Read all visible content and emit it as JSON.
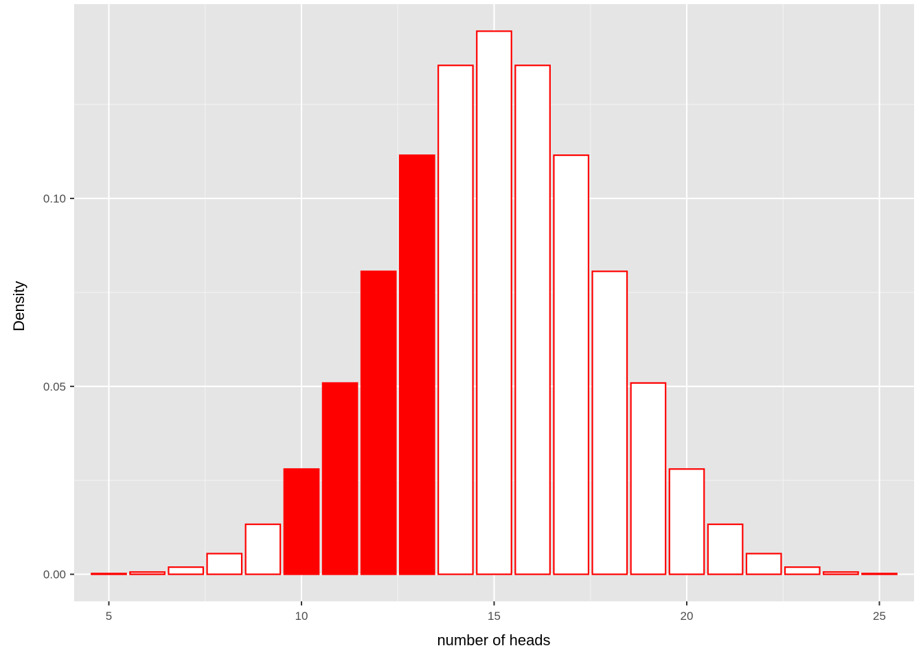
{
  "chart_data": {
    "type": "bar",
    "title": "",
    "xlabel": "number of heads",
    "ylabel": "Density",
    "x": [
      5,
      6,
      7,
      8,
      9,
      10,
      11,
      12,
      13,
      14,
      15,
      16,
      17,
      18,
      19,
      20,
      21,
      22,
      23,
      24,
      25
    ],
    "values": [
      0.0002,
      0.0006,
      0.0019,
      0.0055,
      0.0133,
      0.028,
      0.0509,
      0.0806,
      0.1115,
      0.1354,
      0.1445,
      0.1354,
      0.1115,
      0.0806,
      0.0509,
      0.028,
      0.0133,
      0.0055,
      0.0019,
      0.0006,
      0.0002
    ],
    "highlighted": [
      false,
      false,
      false,
      false,
      false,
      true,
      true,
      true,
      true,
      false,
      false,
      false,
      false,
      false,
      false,
      false,
      false,
      false,
      false,
      false,
      false
    ],
    "xlim": [
      4.1,
      25.9
    ],
    "ylim": [
      -0.0072,
      0.1517
    ],
    "x_ticks": [
      5,
      10,
      15,
      20,
      25
    ],
    "x_tick_labels": [
      "5",
      "10",
      "15",
      "20",
      "25"
    ],
    "y_ticks": [
      0.0,
      0.05,
      0.1
    ],
    "y_tick_labels": [
      "0.00",
      "0.05",
      "0.10"
    ],
    "grid": true,
    "legend": false,
    "colors": {
      "panel_background": "#e5e5e5",
      "grid_major": "#ffffff",
      "grid_minor": "#f2f2f2",
      "bar_outline": "#ff0000",
      "bar_fill": "#ffffff",
      "bar_highlight_fill": "#ff0000"
    }
  }
}
